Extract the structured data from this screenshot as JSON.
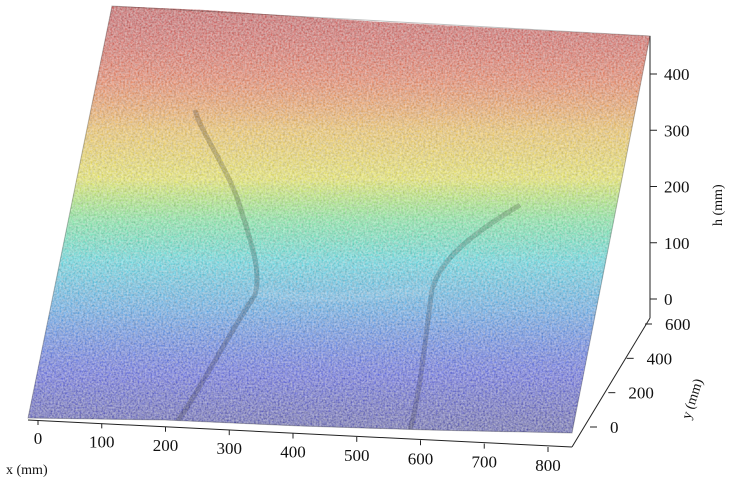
{
  "chart_data": {
    "type": "surface",
    "description_colormap": "jet",
    "colors": {
      "low": "#1010c8",
      "mid_low": "#00d2ea",
      "mid": "#f0f000",
      "high": "#d81810"
    },
    "x_axis": {
      "label": "x (mm)",
      "ticks": [
        0,
        100,
        200,
        300,
        400,
        500,
        600,
        700,
        800
      ],
      "range": [
        0,
        800
      ]
    },
    "y_axis": {
      "label": "y (mm)",
      "ticks": [
        0,
        200,
        400,
        600
      ],
      "range": [
        0,
        600
      ]
    },
    "z_axis": {
      "label": "h (mm)",
      "ticks": [
        0,
        100,
        200,
        300,
        400
      ],
      "range": [
        0,
        450
      ]
    },
    "grid": false,
    "legend": "none"
  }
}
